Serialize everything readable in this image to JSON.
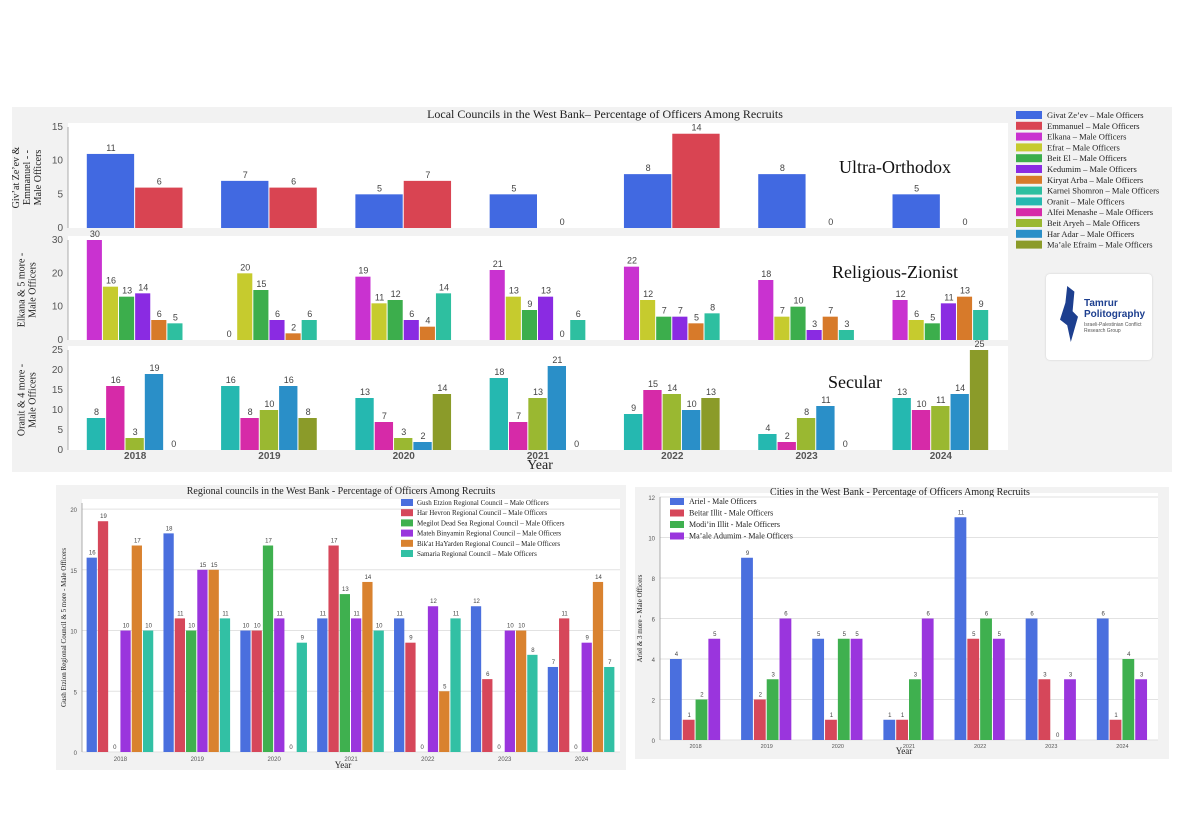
{
  "top": {
    "title": "Local Councils in the West Bank– Percentage of Officers Among Recruits",
    "xlabel": "Year",
    "years": [
      "2018",
      "2019",
      "2020",
      "2021",
      "2022",
      "2023",
      "2024"
    ],
    "legend": [
      {
        "name": "Givat Ze’ev – Male Officers",
        "color": "#4169e1"
      },
      {
        "name": "Emmanuel – Male Officers",
        "color": "#d94452"
      },
      {
        "name": "Elkana – Male Officers",
        "color": "#c932d0"
      },
      {
        "name": "Efrat – Male Officers",
        "color": "#c6cb2e"
      },
      {
        "name": "Beit El – Male Officers",
        "color": "#3cae4c"
      },
      {
        "name": "Kedumim – Male Officers",
        "color": "#8a2be2"
      },
      {
        "name": "Kiryat Arba – Male Officers",
        "color": "#d77a2a"
      },
      {
        "name": "Karnei Shomron – Male Officers",
        "color": "#2ebfa0"
      },
      {
        "name": "Oranit – Male Officers",
        "color": "#25b8b0"
      },
      {
        "name": "Alfei Menashe – Male Officers",
        "color": "#d62aa8"
      },
      {
        "name": "Beit Aryeh – Male Officers",
        "color": "#9ab831"
      },
      {
        "name": "Har Adar – Male Officers",
        "color": "#2a8fc8"
      },
      {
        "name": "Ma’ale Efraim – Male Officers",
        "color": "#8b9b29"
      }
    ],
    "logo": {
      "name": "Tamrur Politography",
      "sub": "Israeli-Palestinian Conflict Research Group"
    }
  },
  "chart_data": [
    {
      "type": "bar",
      "title": "Local Councils in the West Bank– Percentage of Officers Among Recruits — Ultra-Orthodox",
      "label": "Ultra-Orthodox",
      "ylabel": "Giv’at Ze’ev & Emmanuel - Male Officers",
      "ylim": [
        0,
        15
      ],
      "yticks": [
        0,
        5,
        10,
        15
      ],
      "categories": [
        "2018",
        "2019",
        "2020",
        "2021",
        "2022",
        "2023",
        "2024"
      ],
      "series": [
        {
          "name": "Givat Ze’ev – Male Officers",
          "color": "#4169e1",
          "values": [
            11,
            7,
            5,
            5,
            8,
            8,
            5
          ]
        },
        {
          "name": "Emmanuel – Male Officers",
          "color": "#d94452",
          "values": [
            6,
            6,
            7,
            0,
            14,
            0,
            0
          ]
        }
      ]
    },
    {
      "type": "bar",
      "title": "Local Councils in the West Bank– Percentage of Officers Among Recruits — Religious-Zionist",
      "label": "Religious-Zionist",
      "ylabel": "Elkana & 5 more - Male Officers",
      "ylim": [
        0,
        30
      ],
      "yticks": [
        0,
        10,
        20,
        30
      ],
      "categories": [
        "2018",
        "2019",
        "2020",
        "2021",
        "2022",
        "2023",
        "2024"
      ],
      "series": [
        {
          "name": "Elkana – Male Officers",
          "color": "#c932d0",
          "values": [
            30,
            0,
            19,
            21,
            22,
            18,
            12
          ]
        },
        {
          "name": "Efrat – Male Officers",
          "color": "#c6cb2e",
          "values": [
            16,
            20,
            11,
            13,
            12,
            7,
            6
          ]
        },
        {
          "name": "Beit El – Male Officers",
          "color": "#3cae4c",
          "values": [
            13,
            15,
            12,
            9,
            7,
            10,
            5
          ]
        },
        {
          "name": "Kedumim – Male Officers",
          "color": "#8a2be2",
          "values": [
            14,
            6,
            6,
            13,
            7,
            3,
            11
          ]
        },
        {
          "name": "Kiryat Arba – Male Officers",
          "color": "#d77a2a",
          "values": [
            6,
            2,
            4,
            0,
            5,
            7,
            13
          ]
        },
        {
          "name": "Karnei Shomron – Male Officers",
          "color": "#2ebfa0",
          "values": [
            5,
            6,
            14,
            6,
            8,
            3,
            9
          ]
        }
      ]
    },
    {
      "type": "bar",
      "title": "Local Councils in the West Bank– Percentage of Officers Among Recruits — Secular",
      "label": "Secular",
      "ylabel": "Oranit & 4 more - Male Officers",
      "ylim": [
        0,
        25
      ],
      "yticks": [
        0,
        5,
        10,
        15,
        20,
        25
      ],
      "categories": [
        "2018",
        "2019",
        "2020",
        "2021",
        "2022",
        "2023",
        "2024"
      ],
      "series": [
        {
          "name": "Oranit – Male Officers",
          "color": "#25b8b0",
          "values": [
            8,
            16,
            13,
            18,
            9,
            4,
            13
          ]
        },
        {
          "name": "Alfei Menashe – Male Officers",
          "color": "#d62aa8",
          "values": [
            16,
            8,
            7,
            7,
            15,
            2,
            10
          ]
        },
        {
          "name": "Beit Aryeh – Male Officers",
          "color": "#9ab831",
          "values": [
            3,
            10,
            3,
            13,
            14,
            8,
            11
          ]
        },
        {
          "name": "Har Adar – Male Officers",
          "color": "#2a8fc8",
          "values": [
            19,
            16,
            2,
            21,
            10,
            11,
            14
          ]
        },
        {
          "name": "Ma’ale Efraim – Male Officers",
          "color": "#8b9b29",
          "values": [
            0,
            8,
            14,
            0,
            13,
            0,
            25
          ]
        }
      ]
    },
    {
      "type": "bar",
      "title": "Regional councils in the West Bank - Percentage of Officers Among Recruits",
      "xlabel": "Year",
      "ylabel": "Gush Etzion Regional Council & 5 more - Male Officers",
      "ylim": [
        0,
        20.5
      ],
      "yticks": [
        0,
        5,
        10,
        15,
        20
      ],
      "legend_position": "top-right",
      "categories": [
        "2018",
        "2019",
        "2020",
        "2021",
        "2022",
        "2023",
        "2024"
      ],
      "series": [
        {
          "name": "Gush Etzion Regional Council – Male Officers",
          "color": "#4a6fde",
          "values": [
            16,
            18,
            10,
            11,
            11,
            12,
            7
          ]
        },
        {
          "name": "Har Hevron Regional Council – Male Officers",
          "color": "#d6475a",
          "values": [
            19,
            11,
            10,
            17,
            9,
            6,
            11
          ]
        },
        {
          "name": "Megilot Dead Sea Regional Council – Male Officers",
          "color": "#3fb04f",
          "values": [
            0,
            10,
            17,
            13,
            0,
            0,
            0
          ]
        },
        {
          "name": "Mateh Binyamin Regional Council – Male Officers",
          "color": "#9a35dd",
          "values": [
            10,
            15,
            11,
            11,
            12,
            10,
            9
          ]
        },
        {
          "name": "Bik'at HaYarden Regional Council – Male Officers",
          "color": "#d9822f",
          "values": [
            17,
            15,
            0,
            14,
            5,
            10,
            14
          ]
        },
        {
          "name": "Samaria Regional Council – Male Officers",
          "color": "#32c0a4",
          "values": [
            10,
            11,
            9,
            10,
            11,
            8,
            7
          ]
        }
      ]
    },
    {
      "type": "bar",
      "title": "Cities in the West Bank - Percentage of Officers Among Recruits",
      "xlabel": "Year",
      "ylabel": "Ariel & 3 more - Male Officers",
      "ylim": [
        0,
        12
      ],
      "yticks": [
        0,
        2,
        4,
        6,
        8,
        10,
        12
      ],
      "legend_position": "top-left",
      "categories": [
        "2018",
        "2019",
        "2020",
        "2021",
        "2022",
        "2023",
        "2024"
      ],
      "series": [
        {
          "name": "Ariel - Male Officers",
          "color": "#4a6fde",
          "values": [
            4,
            9,
            5,
            1,
            11,
            6,
            6
          ]
        },
        {
          "name": "Beitar Illit - Male Officers",
          "color": "#d6475a",
          "values": [
            1,
            2,
            1,
            1,
            5,
            3,
            1
          ]
        },
        {
          "name": "Modi’in Illit - Male Officers",
          "color": "#3fb04f",
          "values": [
            2,
            3,
            5,
            3,
            6,
            0,
            4
          ]
        },
        {
          "name": "Ma’ale Adumim - Male Officers",
          "color": "#9a35dd",
          "values": [
            5,
            6,
            5,
            6,
            5,
            3,
            3
          ]
        }
      ]
    }
  ]
}
